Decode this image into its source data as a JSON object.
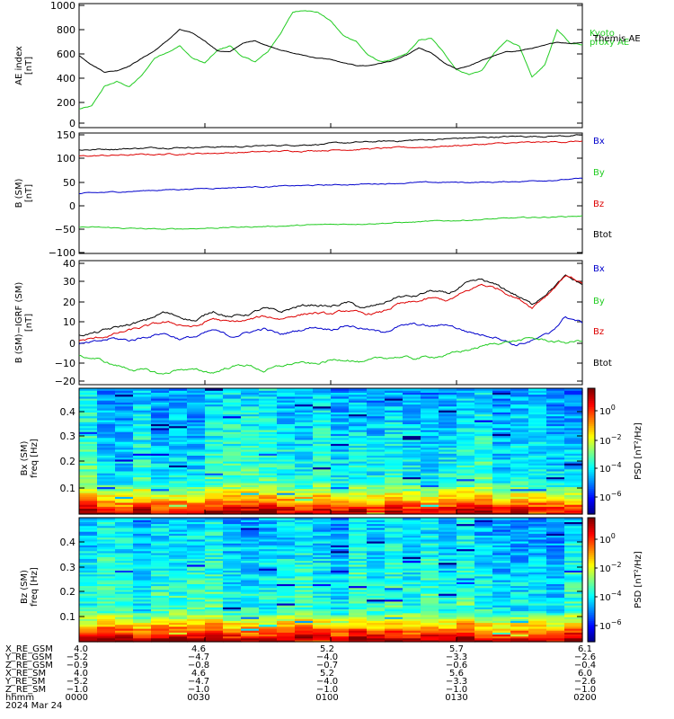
{
  "chart_data": [
    {
      "type": "line",
      "ylabel": [
        "AE index",
        "[nT]"
      ],
      "ylim": [
        0,
        1000
      ],
      "yticks": [
        "0",
        "200",
        "400",
        "600",
        "800",
        "1000"
      ],
      "legend_placement": "right",
      "series": [
        {
          "name": [
            "Kyoto",
            "proxy AE"
          ],
          "color": "#22cc22",
          "x": [
            0,
            3,
            6,
            9,
            12,
            15,
            18,
            21,
            24,
            27,
            30,
            33,
            36,
            39,
            42,
            45,
            48,
            51,
            54,
            57,
            60,
            63,
            66,
            69,
            72,
            75,
            78,
            81,
            84,
            87,
            90,
            93,
            96,
            99,
            102,
            105,
            108,
            111,
            114,
            117,
            120
          ],
          "values": [
            150,
            170,
            330,
            370,
            330,
            420,
            560,
            610,
            660,
            560,
            520,
            620,
            660,
            570,
            530,
            610,
            760,
            930,
            950,
            930,
            860,
            740,
            700,
            580,
            530,
            550,
            590,
            700,
            720,
            600,
            470,
            430,
            460,
            600,
            700,
            660,
            400,
            500,
            790,
            680,
            670
          ]
        },
        {
          "name": "Themis AE",
          "color": "#000000",
          "x": [
            0,
            3,
            6,
            9,
            12,
            15,
            18,
            21,
            24,
            27,
            30,
            33,
            36,
            39,
            42,
            45,
            48,
            51,
            54,
            57,
            60,
            63,
            66,
            69,
            72,
            75,
            78,
            81,
            84,
            87,
            90,
            93,
            96,
            99,
            102,
            105,
            108,
            111,
            114,
            117,
            120
          ],
          "values": [
            580,
            510,
            450,
            460,
            500,
            560,
            620,
            700,
            790,
            760,
            700,
            620,
            610,
            680,
            700,
            660,
            630,
            600,
            580,
            560,
            550,
            520,
            500,
            500,
            520,
            540,
            580,
            640,
            600,
            520,
            470,
            500,
            540,
            580,
            610,
            620,
            640,
            660,
            690,
            680,
            690
          ]
        }
      ]
    },
    {
      "type": "line",
      "ylabel": [
        "B (SM)",
        "[nT]"
      ],
      "ylim": [
        -100,
        150
      ],
      "yticks": [
        "−100",
        "−50",
        "0",
        "50",
        "100",
        "150"
      ],
      "legend_placement": "right",
      "series": [
        {
          "name": "Btot",
          "color": "#000000",
          "x": [
            0,
            20,
            40,
            60,
            80,
            100,
            120
          ],
          "values": [
            115,
            120,
            122,
            128,
            135,
            142,
            145
          ]
        },
        {
          "name": "Bz",
          "color": "#dd0000",
          "x": [
            0,
            20,
            40,
            60,
            80,
            100,
            120
          ],
          "values": [
            102,
            106,
            110,
            115,
            120,
            128,
            133
          ]
        },
        {
          "name": "Bx",
          "color": "#0000cc",
          "x": [
            0,
            20,
            40,
            60,
            80,
            100,
            120
          ],
          "values": [
            24,
            32,
            38,
            42,
            47,
            48,
            55
          ]
        },
        {
          "name": "By",
          "color": "#22cc22",
          "x": [
            0,
            20,
            40,
            60,
            80,
            100,
            120
          ],
          "values": [
            -45,
            -50,
            -45,
            -40,
            -35,
            -28,
            -22
          ]
        }
      ]
    },
    {
      "type": "line",
      "ylabel": [
        "B (SM)−IGRF (SM)",
        "[nT]"
      ],
      "ylim": [
        -22,
        40
      ],
      "yticks": [
        "−20",
        "−10",
        "0",
        "10",
        "20",
        "30",
        "40"
      ],
      "legend_placement": "right",
      "series": [
        {
          "name": "Btot",
          "color": "#000000",
          "x": [
            0,
            4,
            8,
            12,
            16,
            20,
            24,
            28,
            32,
            36,
            40,
            44,
            48,
            52,
            56,
            60,
            64,
            68,
            72,
            76,
            80,
            84,
            88,
            92,
            96,
            100,
            104,
            108,
            112,
            116,
            120
          ],
          "values": [
            3,
            4,
            6,
            8,
            10,
            14,
            12,
            10,
            15,
            12,
            13,
            16,
            14,
            17,
            18,
            17,
            19,
            16,
            18,
            22,
            22,
            25,
            23,
            28,
            30,
            27,
            23,
            18,
            25,
            32,
            28
          ]
        },
        {
          "name": "Bz",
          "color": "#dd0000",
          "x": [
            0,
            4,
            8,
            12,
            16,
            20,
            24,
            28,
            32,
            36,
            40,
            44,
            48,
            52,
            56,
            60,
            64,
            68,
            72,
            76,
            80,
            84,
            88,
            92,
            96,
            100,
            104,
            108,
            112,
            116,
            120
          ],
          "values": [
            0,
            1,
            3,
            5,
            7,
            9,
            8,
            7,
            11,
            9,
            10,
            12,
            11,
            13,
            14,
            13,
            15,
            13,
            14,
            18,
            19,
            21,
            20,
            24,
            28,
            26,
            22,
            17,
            24,
            33,
            29
          ]
        },
        {
          "name": "Bx",
          "color": "#0000cc",
          "x": [
            0,
            4,
            8,
            12,
            16,
            20,
            24,
            28,
            32,
            36,
            40,
            44,
            48,
            52,
            56,
            60,
            64,
            68,
            72,
            76,
            80,
            84,
            88,
            92,
            96,
            100,
            104,
            108,
            112,
            116,
            120
          ],
          "values": [
            -2,
            -1,
            1,
            0,
            2,
            4,
            1,
            2,
            5,
            2,
            4,
            6,
            3,
            5,
            7,
            6,
            8,
            6,
            4,
            7,
            8,
            7,
            8,
            5,
            3,
            2,
            -2,
            0,
            3,
            12,
            9
          ]
        },
        {
          "name": "By",
          "color": "#22cc22",
          "x": [
            0,
            4,
            8,
            12,
            16,
            20,
            24,
            28,
            32,
            36,
            40,
            44,
            48,
            52,
            56,
            60,
            64,
            68,
            72,
            76,
            80,
            84,
            88,
            92,
            96,
            100,
            104,
            108,
            112,
            116,
            120
          ],
          "values": [
            -8,
            -9,
            -12,
            -14,
            -15,
            -17,
            -14,
            -15,
            -16,
            -13,
            -12,
            -15,
            -13,
            -11,
            -12,
            -10,
            -9,
            -11,
            -9,
            -8,
            -9,
            -8,
            -7,
            -5,
            -3,
            -1,
            0,
            1,
            0,
            -1,
            0
          ]
        }
      ]
    },
    {
      "type": "heatmap",
      "ylabel": [
        "Bx (SM)",
        "freq  [Hz]"
      ],
      "ylim": [
        0,
        0.5
      ],
      "yticks": [
        "0.1",
        "0.2",
        "0.3",
        "0.4"
      ],
      "colorbar_label": "PSD [nT²/Hz]",
      "colorbar_ticks": [
        {
          "mant": "10",
          "exp": "0"
        },
        {
          "mant": "10",
          "exp": "−2"
        },
        {
          "mant": "10",
          "exp": "−4"
        },
        {
          "mant": "10",
          "exp": "−6"
        }
      ]
    },
    {
      "type": "heatmap",
      "ylabel": [
        "Bz (SM)",
        "freq  [Hz]"
      ],
      "ylim": [
        0,
        0.5
      ],
      "yticks": [
        "0.1",
        "0.2",
        "0.3",
        "0.4"
      ],
      "colorbar_label": "PSD [nT²/Hz]",
      "colorbar_ticks": [
        {
          "mant": "10",
          "exp": "0"
        },
        {
          "mant": "10",
          "exp": "−2"
        },
        {
          "mant": "10",
          "exp": "−4"
        },
        {
          "mant": "10",
          "exp": "−6"
        }
      ]
    }
  ],
  "orbit_table": {
    "rows": [
      {
        "label": "X_RE_GSM",
        "values": [
          "4.0",
          "4.6",
          "5.2",
          "5.7",
          "6.1"
        ]
      },
      {
        "label": "Y_RE_GSM",
        "values": [
          "−5.2",
          "−4.7",
          "−4.0",
          "−3.3",
          "−2.6"
        ]
      },
      {
        "label": "Z_RE_GSM",
        "values": [
          "−0.9",
          "−0.8",
          "−0.7",
          "−0.6",
          "−0.4"
        ]
      },
      {
        "label": "X_RE_SM",
        "values": [
          "4.0",
          "4.6",
          "5.2",
          "5.6",
          "6.0"
        ]
      },
      {
        "label": "Y_RE_SM",
        "values": [
          "−5.2",
          "−4.7",
          "−4.0",
          "−3.3",
          "−2.6"
        ]
      },
      {
        "label": "Z_RE_SM",
        "values": [
          "−1.0",
          "−1.0",
          "−1.0",
          "−1.0",
          "−1.0"
        ]
      },
      {
        "label": "hhmm",
        "values": [
          "0000",
          "0030",
          "0100",
          "0130",
          "0200"
        ]
      }
    ],
    "date": "2024 Mar 24"
  }
}
